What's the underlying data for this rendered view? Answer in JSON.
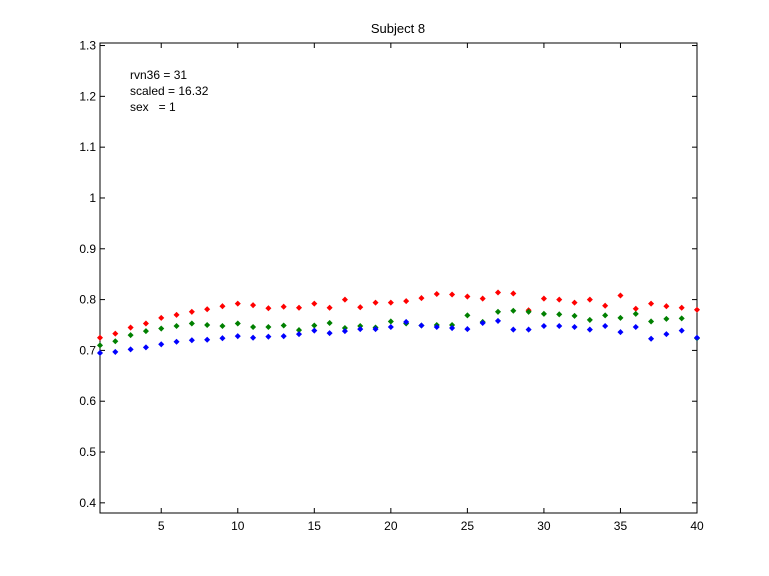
{
  "chart_data": {
    "type": "scatter",
    "title": "Subject 8",
    "xlabel": "",
    "ylabel": "",
    "xlim": [
      1,
      40
    ],
    "ylim": [
      0.38,
      1.305
    ],
    "xticks": [
      5,
      10,
      15,
      20,
      25,
      30,
      35,
      40
    ],
    "xtick_labels": [
      "5",
      "10",
      "15",
      "20",
      "25",
      "30",
      "35",
      "40"
    ],
    "yticks": [
      0.4,
      0.5,
      0.6,
      0.7,
      0.8,
      0.9,
      1.0,
      1.1,
      1.2,
      1.3
    ],
    "ytick_labels": [
      "0.4",
      "0.5",
      "0.6",
      "0.7",
      "0.8",
      "0.9",
      "1",
      "1.1",
      "1.2",
      "1.3"
    ],
    "grid": false,
    "annotations": [
      "rvn36 = 31",
      "scaled = 16.32",
      "sex   = 1"
    ],
    "x": [
      1,
      2,
      3,
      4,
      5,
      6,
      7,
      8,
      9,
      10,
      11,
      12,
      13,
      14,
      15,
      16,
      17,
      18,
      19,
      20,
      21,
      22,
      23,
      24,
      25,
      26,
      27,
      28,
      29,
      30,
      31,
      32,
      33,
      34,
      35,
      36,
      37,
      38,
      39,
      40
    ],
    "series": [
      {
        "color": "#ff0000",
        "values": [
          0.725,
          0.733,
          0.745,
          0.753,
          0.764,
          0.77,
          0.776,
          0.781,
          0.787,
          0.792,
          0.789,
          0.783,
          0.786,
          0.784,
          0.792,
          0.784,
          0.8,
          0.785,
          0.794,
          0.794,
          0.797,
          0.803,
          0.811,
          0.81,
          0.806,
          0.802,
          0.814,
          0.812,
          0.779,
          0.802,
          0.8,
          0.794,
          0.8,
          0.788,
          0.808,
          0.782,
          0.792,
          0.787,
          0.784,
          0.78
        ]
      },
      {
        "color": "#008000",
        "values": [
          0.71,
          0.718,
          0.73,
          0.738,
          0.743,
          0.748,
          0.753,
          0.75,
          0.748,
          0.753,
          0.746,
          0.746,
          0.749,
          0.74,
          0.749,
          0.754,
          0.744,
          0.748,
          0.745,
          0.757,
          0.753,
          0.749,
          0.75,
          0.75,
          0.769,
          0.756,
          0.776,
          0.778,
          0.776,
          0.772,
          0.771,
          0.768,
          0.76,
          0.769,
          0.764,
          0.772,
          0.757,
          0.762,
          0.763,
          0.724
        ]
      },
      {
        "color": "#0000ff",
        "values": [
          0.695,
          0.697,
          0.702,
          0.706,
          0.712,
          0.717,
          0.72,
          0.721,
          0.724,
          0.728,
          0.725,
          0.727,
          0.728,
          0.732,
          0.739,
          0.734,
          0.738,
          0.742,
          0.742,
          0.746,
          0.756,
          0.749,
          0.746,
          0.744,
          0.742,
          0.754,
          0.758,
          0.741,
          0.741,
          0.748,
          0.748,
          0.746,
          0.741,
          0.748,
          0.736,
          0.746,
          0.723,
          0.732,
          0.739,
          0.725
        ]
      }
    ]
  }
}
